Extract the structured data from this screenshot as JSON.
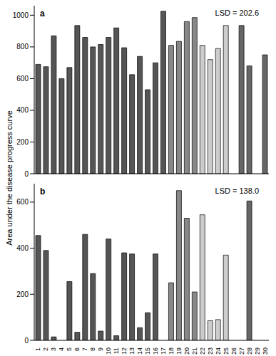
{
  "chart_data": [
    {
      "type": "bar",
      "title": "a",
      "annotation": "LSD = 202.6",
      "y_label": "Area under the disease progress curve",
      "categories": [
        "1",
        "2",
        "3",
        "4",
        "5",
        "6",
        "7",
        "8",
        "9",
        "10",
        "11",
        "12",
        "13",
        "14",
        "15",
        "16",
        "17",
        "18",
        "19",
        "20",
        "21",
        "22",
        "23",
        "24",
        "25",
        "26",
        "27",
        "28",
        "29",
        "30"
      ],
      "values": [
        690,
        675,
        870,
        600,
        670,
        935,
        860,
        800,
        815,
        860,
        920,
        795,
        625,
        740,
        530,
        700,
        1025,
        810,
        835,
        960,
        985,
        810,
        720,
        790,
        935,
        0,
        935,
        680,
        0,
        750
      ],
      "colors": [
        "#555555",
        "#555555",
        "#555555",
        "#555555",
        "#555555",
        "#555555",
        "#555555",
        "#555555",
        "#555555",
        "#555555",
        "#555555",
        "#555555",
        "#555555",
        "#555555",
        "#555555",
        "#555555",
        "#555555",
        "#888888",
        "#888888",
        "#888888",
        "#888888",
        "#cccccc",
        "#cccccc",
        "#cccccc",
        "#cccccc",
        "#666666",
        "#666666",
        "#666666",
        "#666666",
        "#666666"
      ],
      "ylim": [
        0,
        1060
      ],
      "yticks": [
        0,
        200,
        400,
        600,
        800,
        1000
      ],
      "tick_labels": "y"
    },
    {
      "type": "bar",
      "title": "b",
      "annotation": "LSD = 138.0",
      "categories": [
        "1",
        "2",
        "3",
        "4",
        "5",
        "6",
        "7",
        "8",
        "9",
        "10",
        "11",
        "12",
        "13",
        "14",
        "15",
        "16",
        "17",
        "18",
        "19",
        "20",
        "21",
        "22",
        "23",
        "24",
        "25",
        "26",
        "27",
        "28",
        "29",
        "30"
      ],
      "values": [
        455,
        390,
        15,
        0,
        255,
        35,
        460,
        290,
        40,
        440,
        20,
        380,
        375,
        55,
        120,
        375,
        0,
        250,
        650,
        530,
        210,
        545,
        85,
        90,
        370,
        0,
        0,
        605,
        0,
        0
      ],
      "colors": [
        "#555555",
        "#555555",
        "#555555",
        "#555555",
        "#555555",
        "#555555",
        "#555555",
        "#555555",
        "#555555",
        "#555555",
        "#555555",
        "#555555",
        "#555555",
        "#555555",
        "#555555",
        "#555555",
        "#555555",
        "#888888",
        "#888888",
        "#888888",
        "#888888",
        "#cccccc",
        "#cccccc",
        "#cccccc",
        "#cccccc",
        "#666666",
        "#666666",
        "#666666",
        "#666666",
        "#666666"
      ],
      "ylim": [
        0,
        680
      ],
      "yticks": [
        0,
        200,
        400,
        600
      ]
    }
  ]
}
